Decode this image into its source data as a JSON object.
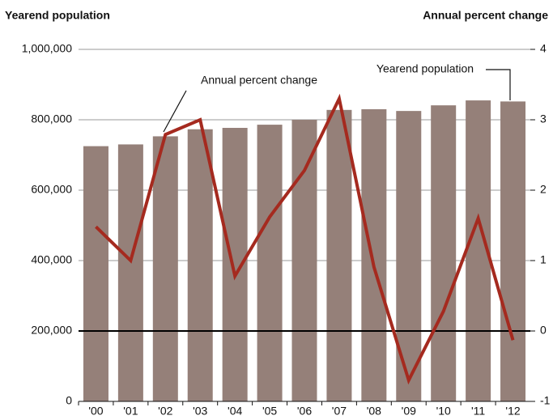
{
  "chart_data": {
    "type": "bar-line",
    "y_title": "Yearend population",
    "y2_title": "Annual percent change",
    "annotations": [
      "Annual percent change",
      "Yearend population"
    ],
    "categories": [
      "'00",
      "'01",
      "'02",
      "'03",
      "'04",
      "'05",
      "'06",
      "'07",
      "'08",
      "'09",
      "'10",
      "'11",
      "'12"
    ],
    "series": [
      {
        "name": "Yearend population",
        "type": "bar",
        "color": "#958079",
        "values": [
          725000,
          730000,
          753000,
          773000,
          777000,
          786000,
          800000,
          828000,
          830000,
          825000,
          841000,
          855000,
          852000
        ]
      },
      {
        "name": "Annual percent change",
        "type": "line",
        "axis": "y2",
        "color": "#a52a1f",
        "values": [
          1.48,
          1.0,
          2.79,
          3.0,
          0.78,
          1.62,
          2.28,
          3.3,
          0.91,
          -0.7,
          0.28,
          1.6,
          -0.13
        ]
      }
    ],
    "ylim": [
      0,
      1000000
    ],
    "yticks": [
      0,
      {
        "value": 200000,
        "label": "200,000"
      },
      {
        "value": 400000,
        "label": "400,000"
      },
      {
        "value": 600000,
        "label": "600,000"
      },
      {
        "value": 800000,
        "label": "800,000"
      },
      {
        "value": 1000000,
        "label": "1,000,000"
      }
    ],
    "y2lim": [
      -1,
      4
    ],
    "y2ticks": [
      -1,
      0,
      1,
      2,
      3,
      4
    ],
    "grid": true
  }
}
